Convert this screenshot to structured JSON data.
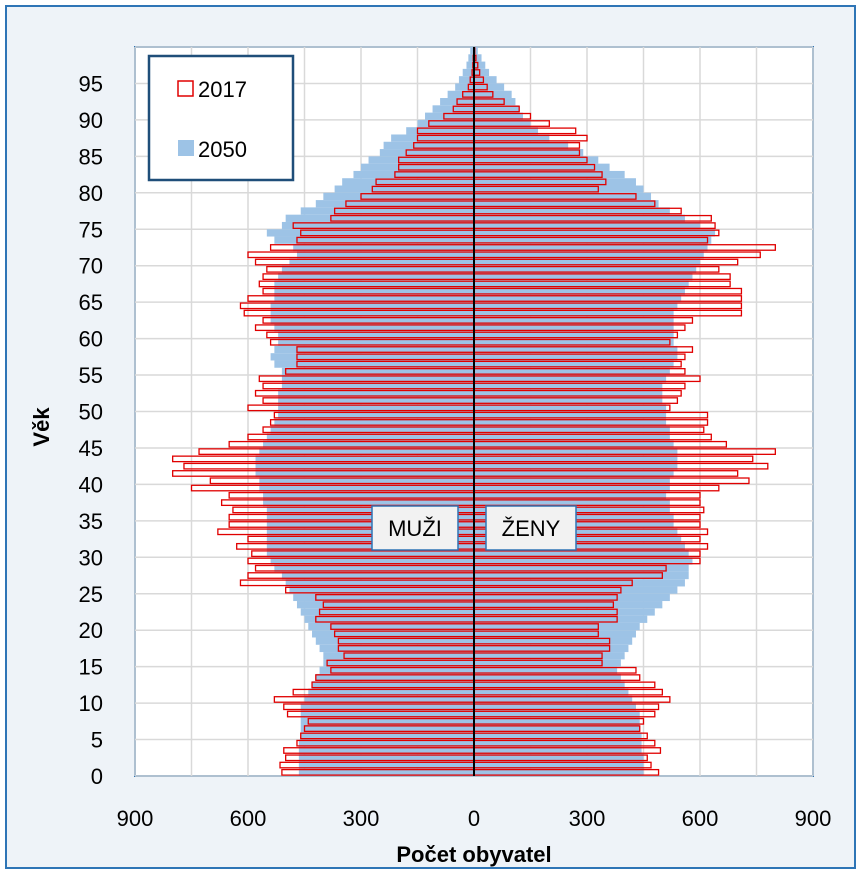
{
  "chart_data": {
    "type": "population-pyramid",
    "xlabel": "Počet obyvatel",
    "ylabel": "Věk",
    "xlim": [
      -900,
      900
    ],
    "ylim": [
      0,
      100
    ],
    "x_ticks": [
      "900",
      "600",
      "300",
      "0",
      "300",
      "600",
      "900"
    ],
    "y_ticks": [
      "0",
      "5",
      "10",
      "15",
      "20",
      "25",
      "30",
      "35",
      "40",
      "45",
      "50",
      "55",
      "60",
      "65",
      "70",
      "75",
      "80",
      "85",
      "90",
      "95"
    ],
    "grid": true,
    "legend_position": "top-left",
    "labels": {
      "left": "MUŽI",
      "right": "ŽENY"
    },
    "colors": {
      "series_2017": "#e00000",
      "series_2050": "#9dc3e6",
      "frame": "#2e75b6",
      "background": "#eef3f8"
    },
    "series": [
      {
        "name": "2017",
        "style": "outline",
        "ages": [
          0,
          1,
          2,
          3,
          4,
          5,
          6,
          7,
          8,
          9,
          10,
          11,
          12,
          13,
          14,
          15,
          16,
          17,
          18,
          19,
          20,
          21,
          22,
          23,
          24,
          25,
          26,
          27,
          28,
          29,
          30,
          31,
          32,
          33,
          34,
          35,
          36,
          37,
          38,
          39,
          40,
          41,
          42,
          43,
          44,
          45,
          46,
          47,
          48,
          49,
          50,
          51,
          52,
          53,
          54,
          55,
          56,
          57,
          58,
          59,
          60,
          61,
          62,
          63,
          64,
          65,
          66,
          67,
          68,
          69,
          70,
          71,
          72,
          73,
          74,
          75,
          76,
          77,
          78,
          79,
          80,
          81,
          82,
          83,
          84,
          85,
          86,
          87,
          88,
          89,
          90,
          91,
          92,
          93,
          94,
          95,
          96,
          97,
          98,
          99
        ],
        "male": [
          510,
          515,
          500,
          505,
          470,
          460,
          450,
          440,
          495,
          505,
          530,
          480,
          430,
          420,
          380,
          390,
          345,
          360,
          360,
          370,
          380,
          420,
          410,
          400,
          420,
          500,
          620,
          600,
          580,
          600,
          590,
          630,
          600,
          680,
          650,
          650,
          640,
          670,
          650,
          750,
          700,
          800,
          770,
          800,
          730,
          650,
          600,
          560,
          540,
          530,
          600,
          560,
          580,
          560,
          570,
          500,
          470,
          470,
          470,
          540,
          550,
          580,
          560,
          610,
          620,
          600,
          560,
          570,
          560,
          550,
          580,
          600,
          540,
          470,
          460,
          480,
          380,
          370,
          340,
          300,
          270,
          260,
          210,
          200,
          200,
          180,
          160,
          150,
          150,
          120,
          80,
          55,
          45,
          30,
          15,
          10,
          5,
          3,
          2,
          1
        ],
        "female": [
          490,
          470,
          460,
          495,
          480,
          460,
          440,
          450,
          480,
          490,
          520,
          500,
          480,
          440,
          430,
          340,
          340,
          360,
          360,
          330,
          330,
          380,
          380,
          370,
          380,
          390,
          420,
          500,
          510,
          600,
          600,
          620,
          600,
          620,
          600,
          600,
          610,
          600,
          600,
          650,
          730,
          700,
          780,
          740,
          800,
          670,
          630,
          610,
          620,
          620,
          520,
          540,
          550,
          560,
          600,
          560,
          550,
          560,
          580,
          520,
          540,
          560,
          580,
          710,
          710,
          710,
          710,
          680,
          680,
          650,
          700,
          760,
          800,
          620,
          650,
          640,
          630,
          550,
          480,
          430,
          330,
          350,
          340,
          320,
          300,
          280,
          280,
          300,
          270,
          200,
          150,
          120,
          80,
          50,
          35,
          25,
          15,
          10,
          5,
          2
        ]
      },
      {
        "name": "2050",
        "style": "filled",
        "ages": [
          0,
          1,
          2,
          3,
          4,
          5,
          6,
          7,
          8,
          9,
          10,
          11,
          12,
          13,
          14,
          15,
          16,
          17,
          18,
          19,
          20,
          21,
          22,
          23,
          24,
          25,
          26,
          27,
          28,
          29,
          30,
          31,
          32,
          33,
          34,
          35,
          36,
          37,
          38,
          39,
          40,
          41,
          42,
          43,
          44,
          45,
          46,
          47,
          48,
          49,
          50,
          51,
          52,
          53,
          54,
          55,
          56,
          57,
          58,
          59,
          60,
          61,
          62,
          63,
          64,
          65,
          66,
          67,
          68,
          69,
          70,
          71,
          72,
          73,
          74,
          75,
          76,
          77,
          78,
          79,
          80,
          81,
          82,
          83,
          84,
          85,
          86,
          87,
          88,
          89,
          90,
          91,
          92,
          93,
          94,
          95,
          96,
          97,
          98,
          99
        ],
        "male": [
          465,
          465,
          465,
          465,
          465,
          460,
          460,
          460,
          460,
          460,
          450,
          440,
          430,
          420,
          410,
          400,
          400,
          410,
          420,
          430,
          440,
          450,
          460,
          470,
          480,
          490,
          500,
          510,
          530,
          540,
          550,
          550,
          550,
          550,
          550,
          550,
          550,
          560,
          560,
          570,
          570,
          580,
          580,
          580,
          570,
          560,
          550,
          540,
          530,
          520,
          520,
          520,
          520,
          510,
          510,
          510,
          530,
          540,
          530,
          520,
          520,
          530,
          540,
          540,
          540,
          530,
          530,
          530,
          520,
          510,
          490,
          470,
          480,
          530,
          550,
          510,
          500,
          460,
          420,
          400,
          370,
          350,
          320,
          300,
          280,
          250,
          240,
          220,
          180,
          150,
          130,
          110,
          90,
          70,
          50,
          40,
          30,
          20,
          15,
          10
        ],
        "female": [
          450,
          450,
          450,
          445,
          445,
          445,
          440,
          440,
          440,
          430,
          420,
          410,
          400,
          390,
          380,
          390,
          400,
          410,
          420,
          430,
          440,
          460,
          480,
          500,
          520,
          540,
          560,
          570,
          570,
          580,
          570,
          560,
          550,
          540,
          530,
          530,
          520,
          520,
          510,
          520,
          520,
          530,
          540,
          540,
          540,
          530,
          520,
          520,
          510,
          510,
          510,
          500,
          500,
          500,
          510,
          520,
          530,
          540,
          540,
          530,
          530,
          530,
          530,
          530,
          540,
          550,
          560,
          570,
          580,
          590,
          600,
          610,
          620,
          630,
          640,
          600,
          560,
          520,
          490,
          470,
          450,
          430,
          400,
          360,
          330,
          290,
          250,
          200,
          170,
          150,
          130,
          120,
          110,
          100,
          80,
          60,
          40,
          30,
          20,
          10
        ]
      }
    ]
  }
}
